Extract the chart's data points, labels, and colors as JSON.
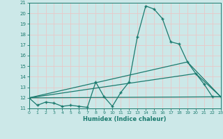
{
  "xlabel": "Humidex (Indice chaleur)",
  "background_color": "#cce8e8",
  "grid_color": "#e8c8c8",
  "line_color": "#1a7a6e",
  "xlim": [
    0,
    23
  ],
  "ylim": [
    11,
    21
  ],
  "xticks": [
    0,
    1,
    2,
    3,
    4,
    5,
    6,
    7,
    8,
    9,
    10,
    11,
    12,
    13,
    14,
    15,
    16,
    17,
    18,
    19,
    20,
    21,
    22,
    23
  ],
  "yticks": [
    11,
    12,
    13,
    14,
    15,
    16,
    17,
    18,
    19,
    20,
    21
  ],
  "line1_x": [
    0,
    1,
    2,
    3,
    4,
    5,
    6,
    7,
    8,
    9,
    10,
    11,
    12,
    13,
    14,
    15,
    16,
    17,
    18,
    19,
    20,
    21,
    22,
    23
  ],
  "line1_y": [
    12,
    11.3,
    11.6,
    11.5,
    11.2,
    11.3,
    11.2,
    11.1,
    13.5,
    12.1,
    11.2,
    12.5,
    13.5,
    17.8,
    20.7,
    20.4,
    19.5,
    17.3,
    17.1,
    15.4,
    14.3,
    13.3,
    12.1,
    12.1
  ],
  "line2_x": [
    0,
    23
  ],
  "line2_y": [
    12,
    12.1
  ],
  "line3_x": [
    0,
    20,
    23
  ],
  "line3_y": [
    12,
    14.3,
    12.1
  ],
  "line4_x": [
    0,
    19,
    23
  ],
  "line4_y": [
    12,
    15.4,
    12.1
  ],
  "figsize": [
    3.2,
    2.0
  ],
  "dpi": 100
}
